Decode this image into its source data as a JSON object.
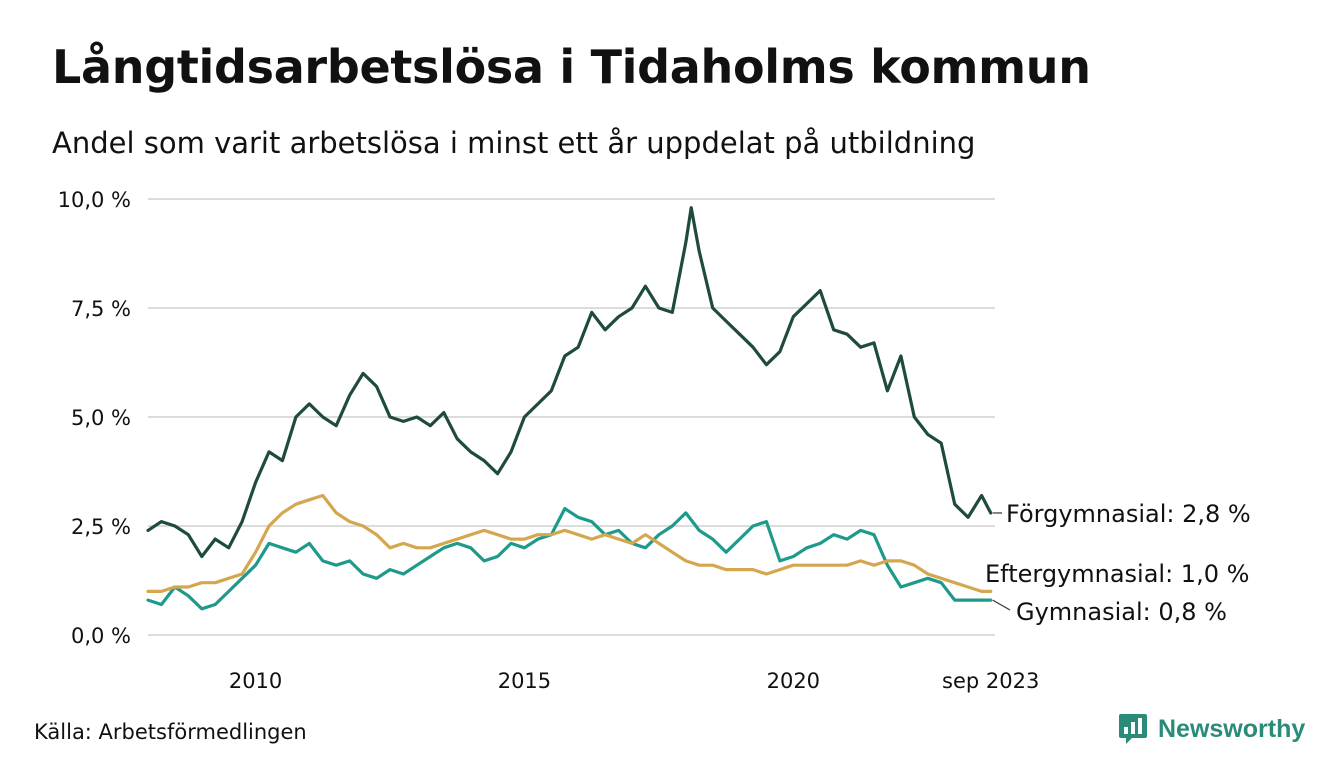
{
  "header": {
    "title": "Långtidsarbetslösa i Tidaholms kommun",
    "subtitle": "Andel som varit arbetslösa i minst ett år uppdelat på utbildning"
  },
  "footer": {
    "source": "Källa: Arbetsförmedlingen",
    "brand": "Newsworthy"
  },
  "colors": {
    "forgymnasial": "#1f4a3e",
    "gymnasial": "#1e9a8a",
    "eftergymnasial": "#d4a74f",
    "grid": "#dcdcdc",
    "brand": "#2a8c78"
  },
  "chart_data": {
    "type": "line",
    "title": "Långtidsarbetslösa i Tidaholms kommun",
    "subtitle": "Andel som varit arbetslösa i minst ett år uppdelat på utbildning",
    "xlabel": "",
    "ylabel": "",
    "xlim": [
      2008.0,
      2023.75
    ],
    "ylim": [
      0,
      10
    ],
    "grid": true,
    "legend": "direct labels at line ends",
    "y_ticks": [
      {
        "value": 0,
        "label": "0,0 %"
      },
      {
        "value": 2.5,
        "label": "2,5 %"
      },
      {
        "value": 5,
        "label": "5,0 %"
      },
      {
        "value": 7.5,
        "label": "7,5 %"
      },
      {
        "value": 10,
        "label": "10,0 %"
      }
    ],
    "x_ticks": [
      {
        "value": 2010,
        "label": "2010"
      },
      {
        "value": 2015,
        "label": "2015"
      },
      {
        "value": 2020,
        "label": "2020"
      },
      {
        "value": 2023.67,
        "label": "sep 2023"
      }
    ],
    "series": [
      {
        "name": "Förgymnasial",
        "end_label": "Förgymnasial: 2,8 %",
        "color": "#1f4a3e",
        "x": [
          2008.0,
          2008.25,
          2008.5,
          2008.75,
          2009.0,
          2009.25,
          2009.5,
          2009.75,
          2010.0,
          2010.25,
          2010.5,
          2010.75,
          2011.0,
          2011.25,
          2011.5,
          2011.75,
          2012.0,
          2012.25,
          2012.5,
          2012.75,
          2013.0,
          2013.25,
          2013.5,
          2013.75,
          2014.0,
          2014.25,
          2014.5,
          2014.75,
          2015.0,
          2015.25,
          2015.5,
          2015.75,
          2016.0,
          2016.25,
          2016.5,
          2016.75,
          2017.0,
          2017.25,
          2017.5,
          2017.75,
          2018.0,
          2018.1,
          2018.25,
          2018.5,
          2018.75,
          2019.0,
          2019.25,
          2019.5,
          2019.75,
          2020.0,
          2020.25,
          2020.5,
          2020.75,
          2021.0,
          2021.25,
          2021.5,
          2021.75,
          2022.0,
          2022.25,
          2022.5,
          2022.75,
          2023.0,
          2023.25,
          2023.5,
          2023.67
        ],
        "values": [
          2.4,
          2.6,
          2.5,
          2.3,
          1.8,
          2.2,
          2.0,
          2.6,
          3.5,
          4.2,
          4.0,
          5.0,
          5.3,
          5.0,
          4.8,
          5.5,
          6.0,
          5.7,
          5.0,
          4.9,
          5.0,
          4.8,
          5.1,
          4.5,
          4.2,
          4.0,
          3.7,
          4.2,
          5.0,
          5.3,
          5.6,
          6.4,
          6.6,
          7.4,
          7.0,
          7.3,
          7.5,
          8.0,
          7.5,
          7.4,
          9.0,
          9.8,
          8.8,
          7.5,
          7.2,
          6.9,
          6.6,
          6.2,
          6.5,
          7.3,
          7.6,
          7.9,
          7.0,
          6.9,
          6.6,
          6.7,
          5.6,
          6.4,
          5.0,
          4.6,
          4.4,
          3.0,
          2.7,
          3.2,
          2.8
        ]
      },
      {
        "name": "Gymnasial",
        "end_label": "Gymnasial: 0,8 %",
        "color": "#1e9a8a",
        "x": [
          2008.0,
          2008.25,
          2008.5,
          2008.75,
          2009.0,
          2009.25,
          2009.5,
          2009.75,
          2010.0,
          2010.25,
          2010.5,
          2010.75,
          2011.0,
          2011.25,
          2011.5,
          2011.75,
          2012.0,
          2012.25,
          2012.5,
          2012.75,
          2013.0,
          2013.25,
          2013.5,
          2013.75,
          2014.0,
          2014.25,
          2014.5,
          2014.75,
          2015.0,
          2015.25,
          2015.5,
          2015.75,
          2016.0,
          2016.25,
          2016.5,
          2016.75,
          2017.0,
          2017.25,
          2017.5,
          2017.75,
          2018.0,
          2018.25,
          2018.5,
          2018.75,
          2019.0,
          2019.25,
          2019.5,
          2019.75,
          2020.0,
          2020.25,
          2020.5,
          2020.75,
          2021.0,
          2021.25,
          2021.5,
          2021.75,
          2022.0,
          2022.25,
          2022.5,
          2022.75,
          2023.0,
          2023.25,
          2023.5,
          2023.67
        ],
        "values": [
          0.8,
          0.7,
          1.1,
          0.9,
          0.6,
          0.7,
          1.0,
          1.3,
          1.6,
          2.1,
          2.0,
          1.9,
          2.1,
          1.7,
          1.6,
          1.7,
          1.4,
          1.3,
          1.5,
          1.4,
          1.6,
          1.8,
          2.0,
          2.1,
          2.0,
          1.7,
          1.8,
          2.1,
          2.0,
          2.2,
          2.3,
          2.9,
          2.7,
          2.6,
          2.3,
          2.4,
          2.1,
          2.0,
          2.3,
          2.5,
          2.8,
          2.4,
          2.2,
          1.9,
          2.2,
          2.5,
          2.6,
          1.7,
          1.8,
          2.0,
          2.1,
          2.3,
          2.2,
          2.4,
          2.3,
          1.6,
          1.1,
          1.2,
          1.3,
          1.2,
          0.8,
          0.8,
          0.8,
          0.8
        ]
      },
      {
        "name": "Eftergymnasial",
        "end_label": "Eftergymnasial: 1,0 %",
        "color": "#d4a74f",
        "x": [
          2008.0,
          2008.25,
          2008.5,
          2008.75,
          2009.0,
          2009.25,
          2009.5,
          2009.75,
          2010.0,
          2010.25,
          2010.5,
          2010.75,
          2011.0,
          2011.25,
          2011.5,
          2011.75,
          2012.0,
          2012.25,
          2012.5,
          2012.75,
          2013.0,
          2013.25,
          2013.5,
          2013.75,
          2014.0,
          2014.25,
          2014.5,
          2014.75,
          2015.0,
          2015.25,
          2015.5,
          2015.75,
          2016.0,
          2016.25,
          2016.5,
          2016.75,
          2017.0,
          2017.25,
          2017.5,
          2017.75,
          2018.0,
          2018.25,
          2018.5,
          2018.75,
          2019.0,
          2019.25,
          2019.5,
          2019.75,
          2020.0,
          2020.25,
          2020.5,
          2020.75,
          2021.0,
          2021.25,
          2021.5,
          2021.75,
          2022.0,
          2022.25,
          2022.5,
          2022.75,
          2023.0,
          2023.25,
          2023.5,
          2023.67
        ],
        "values": [
          1.0,
          1.0,
          1.1,
          1.1,
          1.2,
          1.2,
          1.3,
          1.4,
          1.9,
          2.5,
          2.8,
          3.0,
          3.1,
          3.2,
          2.8,
          2.6,
          2.5,
          2.3,
          2.0,
          2.1,
          2.0,
          2.0,
          2.1,
          2.2,
          2.3,
          2.4,
          2.3,
          2.2,
          2.2,
          2.3,
          2.3,
          2.4,
          2.3,
          2.2,
          2.3,
          2.2,
          2.1,
          2.3,
          2.1,
          1.9,
          1.7,
          1.6,
          1.6,
          1.5,
          1.5,
          1.5,
          1.4,
          1.5,
          1.6,
          1.6,
          1.6,
          1.6,
          1.6,
          1.7,
          1.6,
          1.7,
          1.7,
          1.6,
          1.4,
          1.3,
          1.2,
          1.1,
          1.0,
          1.0
        ]
      }
    ]
  }
}
